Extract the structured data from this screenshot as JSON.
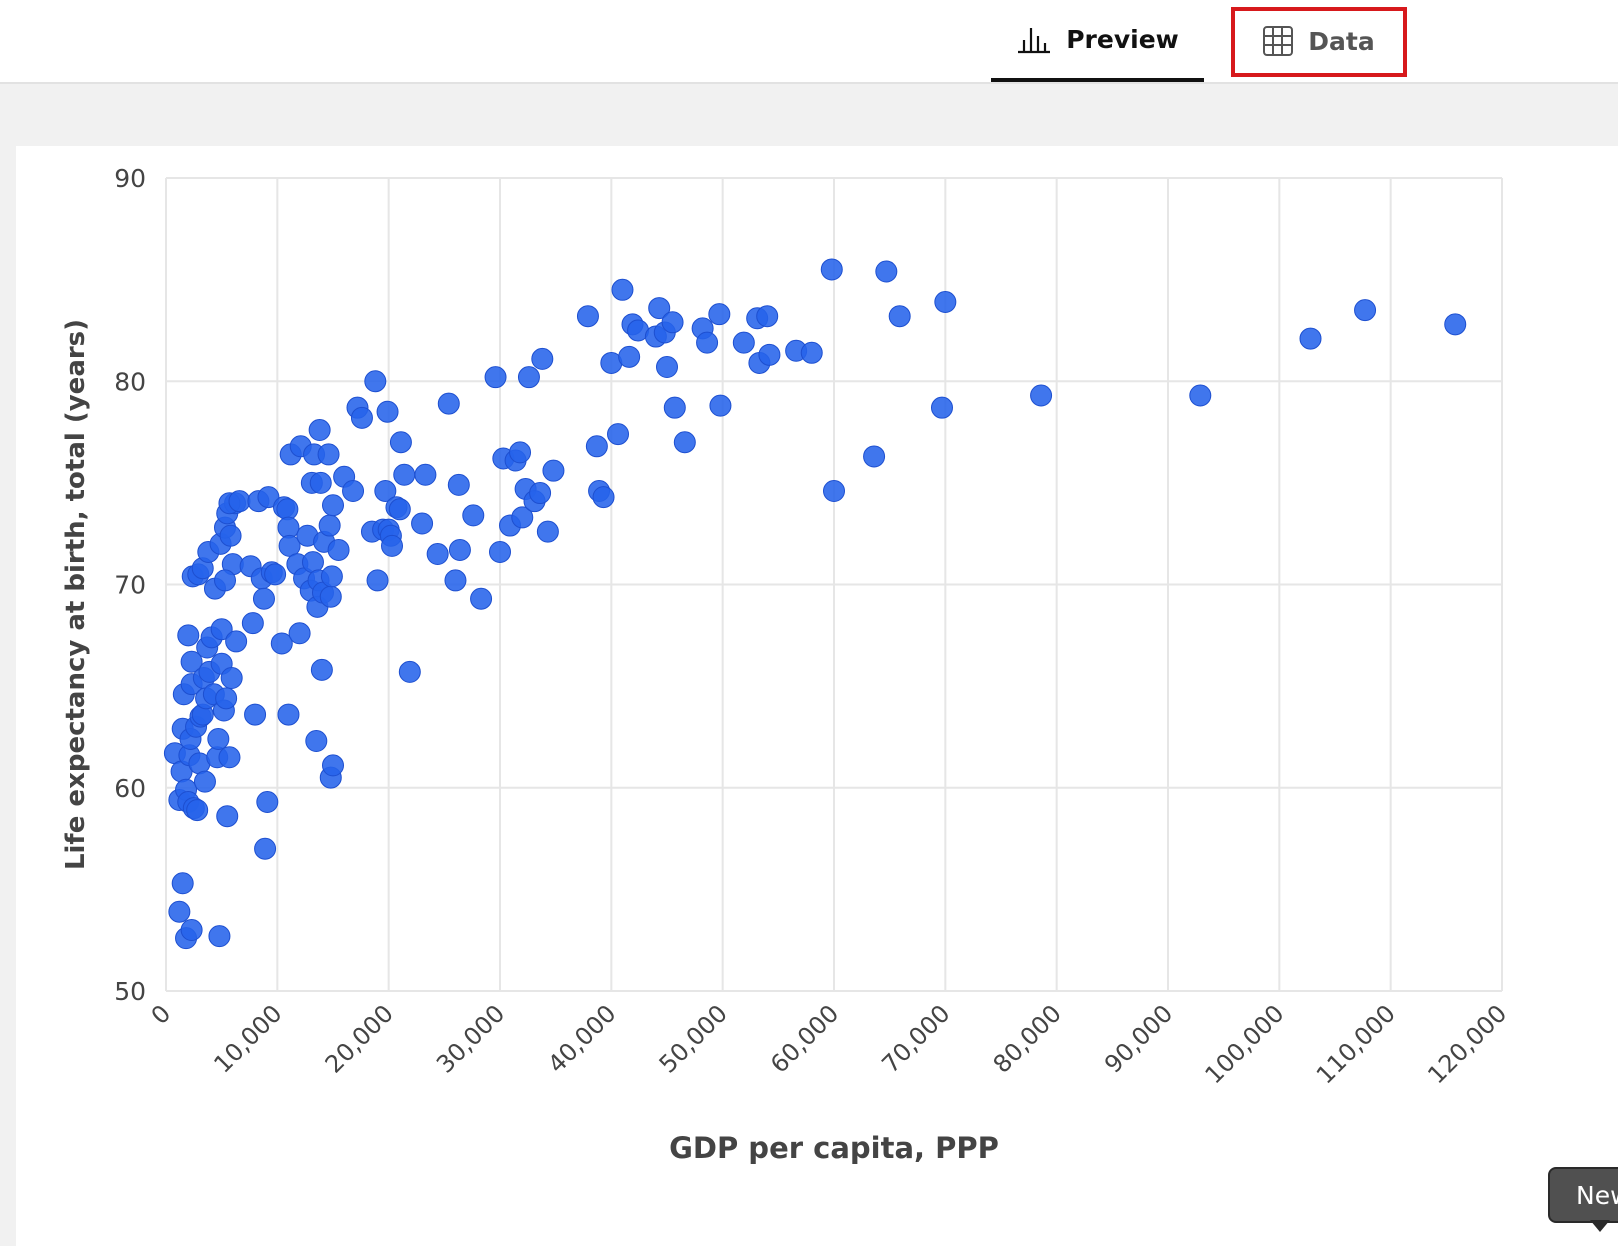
{
  "tabs": {
    "preview_label": "Preview",
    "data_label": "Data"
  },
  "tooltip": {
    "text": "New"
  },
  "colors": {
    "point": "#2563eb",
    "highlight": "#d7191c"
  },
  "chart_data": {
    "type": "scatter",
    "xlabel": "GDP per capita, PPP",
    "ylabel": "Life expectancy at birth, total (years)",
    "xlim": [
      0,
      120000
    ],
    "ylim": [
      50,
      90
    ],
    "x_ticks": [
      0,
      10000,
      20000,
      30000,
      40000,
      50000,
      60000,
      70000,
      80000,
      90000,
      100000,
      110000,
      120000
    ],
    "x_tick_labels": [
      "0",
      "10,000",
      "20,000",
      "30,000",
      "40,000",
      "50,000",
      "60,000",
      "70,000",
      "80,000",
      "90,000",
      "100,000",
      "110,000",
      "120,000"
    ],
    "y_ticks": [
      50,
      60,
      70,
      80,
      90
    ],
    "y_tick_labels": [
      "50",
      "60",
      "70",
      "80",
      "90"
    ],
    "grid": true,
    "points": [
      [
        1200,
        53.9
      ],
      [
        1500,
        55.3
      ],
      [
        1800,
        52.6
      ],
      [
        2300,
        53.0
      ],
      [
        4800,
        52.7
      ],
      [
        800,
        61.7
      ],
      [
        1200,
        59.4
      ],
      [
        1400,
        60.8
      ],
      [
        1500,
        62.9
      ],
      [
        1600,
        64.6
      ],
      [
        1800,
        59.9
      ],
      [
        2000,
        59.3
      ],
      [
        2100,
        61.6
      ],
      [
        2200,
        62.4
      ],
      [
        2300,
        65.1
      ],
      [
        2300,
        66.2
      ],
      [
        2000,
        67.5
      ],
      [
        2500,
        59.0
      ],
      [
        2700,
        63.0
      ],
      [
        2800,
        58.9
      ],
      [
        3000,
        61.2
      ],
      [
        3100,
        63.5
      ],
      [
        3300,
        63.6
      ],
      [
        3400,
        65.4
      ],
      [
        3500,
        60.3
      ],
      [
        3600,
        64.4
      ],
      [
        3700,
        66.9
      ],
      [
        3900,
        65.7
      ],
      [
        4100,
        67.4
      ],
      [
        4300,
        64.6
      ],
      [
        4600,
        61.5
      ],
      [
        4700,
        62.4
      ],
      [
        5000,
        66.1
      ],
      [
        5000,
        67.8
      ],
      [
        5200,
        63.8
      ],
      [
        5400,
        64.4
      ],
      [
        5500,
        58.6
      ],
      [
        5700,
        61.5
      ],
      [
        5900,
        65.4
      ],
      [
        6300,
        67.2
      ],
      [
        2400,
        70.4
      ],
      [
        2900,
        70.5
      ],
      [
        3300,
        70.8
      ],
      [
        3800,
        71.6
      ],
      [
        4400,
        69.8
      ],
      [
        4900,
        72.0
      ],
      [
        5300,
        72.8
      ],
      [
        5500,
        73.5
      ],
      [
        5800,
        72.4
      ],
      [
        6000,
        71.0
      ],
      [
        6200,
        74.0
      ],
      [
        5700,
        74.0
      ],
      [
        5300,
        70.2
      ],
      [
        6600,
        74.1
      ],
      [
        7600,
        70.9
      ],
      [
        7800,
        68.1
      ],
      [
        8000,
        63.6
      ],
      [
        8300,
        74.1
      ],
      [
        8600,
        70.3
      ],
      [
        8800,
        69.3
      ],
      [
        8900,
        57.0
      ],
      [
        9100,
        59.3
      ],
      [
        9200,
        74.3
      ],
      [
        9500,
        70.6
      ],
      [
        9800,
        70.5
      ],
      [
        10400,
        67.1
      ],
      [
        10600,
        73.8
      ],
      [
        10900,
        73.7
      ],
      [
        11000,
        72.8
      ],
      [
        11000,
        63.6
      ],
      [
        11100,
        71.9
      ],
      [
        11200,
        76.4
      ],
      [
        11800,
        71.0
      ],
      [
        12000,
        67.6
      ],
      [
        12100,
        76.8
      ],
      [
        12400,
        70.3
      ],
      [
        12700,
        72.4
      ],
      [
        13000,
        69.7
      ],
      [
        13100,
        75.0
      ],
      [
        13200,
        71.1
      ],
      [
        13300,
        76.4
      ],
      [
        13500,
        62.3
      ],
      [
        13600,
        68.9
      ],
      [
        13700,
        70.2
      ],
      [
        13800,
        77.6
      ],
      [
        13900,
        75.0
      ],
      [
        14000,
        65.8
      ],
      [
        14100,
        69.6
      ],
      [
        14200,
        72.1
      ],
      [
        14600,
        76.4
      ],
      [
        14700,
        72.9
      ],
      [
        14800,
        69.4
      ],
      [
        14900,
        70.4
      ],
      [
        15000,
        73.9
      ],
      [
        14800,
        60.5
      ],
      [
        15000,
        61.1
      ],
      [
        15500,
        71.7
      ],
      [
        16000,
        75.3
      ],
      [
        16800,
        74.6
      ],
      [
        17200,
        78.7
      ],
      [
        17600,
        78.2
      ],
      [
        18500,
        72.6
      ],
      [
        18800,
        80.0
      ],
      [
        19000,
        70.2
      ],
      [
        19500,
        72.7
      ],
      [
        19700,
        74.6
      ],
      [
        19900,
        78.5
      ],
      [
        20000,
        72.7
      ],
      [
        20200,
        72.4
      ],
      [
        20300,
        71.9
      ],
      [
        20700,
        73.8
      ],
      [
        21000,
        73.7
      ],
      [
        21100,
        77.0
      ],
      [
        21400,
        75.4
      ],
      [
        21900,
        65.7
      ],
      [
        23000,
        73.0
      ],
      [
        23300,
        75.4
      ],
      [
        24400,
        71.5
      ],
      [
        25400,
        78.9
      ],
      [
        26000,
        70.2
      ],
      [
        26400,
        71.7
      ],
      [
        26300,
        74.9
      ],
      [
        27600,
        73.4
      ],
      [
        28300,
        69.3
      ],
      [
        29600,
        80.2
      ],
      [
        30000,
        71.6
      ],
      [
        30300,
        76.2
      ],
      [
        30900,
        72.9
      ],
      [
        31400,
        76.1
      ],
      [
        31800,
        76.5
      ],
      [
        32000,
        73.3
      ],
      [
        32300,
        74.7
      ],
      [
        32600,
        80.2
      ],
      [
        33100,
        74.1
      ],
      [
        33600,
        74.5
      ],
      [
        33800,
        81.1
      ],
      [
        34300,
        72.6
      ],
      [
        34800,
        75.6
      ],
      [
        37900,
        83.2
      ],
      [
        38700,
        76.8
      ],
      [
        38900,
        74.6
      ],
      [
        39300,
        74.3
      ],
      [
        40000,
        80.9
      ],
      [
        40600,
        77.4
      ],
      [
        41000,
        84.5
      ],
      [
        41600,
        81.2
      ],
      [
        41900,
        82.8
      ],
      [
        42400,
        82.5
      ],
      [
        44000,
        82.2
      ],
      [
        44300,
        83.6
      ],
      [
        44800,
        82.4
      ],
      [
        45000,
        80.7
      ],
      [
        45500,
        82.9
      ],
      [
        45700,
        78.7
      ],
      [
        46600,
        77.0
      ],
      [
        48200,
        82.6
      ],
      [
        48600,
        81.9
      ],
      [
        49700,
        83.3
      ],
      [
        49800,
        78.8
      ],
      [
        51900,
        81.9
      ],
      [
        53100,
        83.1
      ],
      [
        53300,
        80.9
      ],
      [
        54000,
        83.2
      ],
      [
        54200,
        81.3
      ],
      [
        56600,
        81.5
      ],
      [
        58000,
        81.4
      ],
      [
        59800,
        85.5
      ],
      [
        60000,
        74.6
      ],
      [
        63600,
        76.3
      ],
      [
        64700,
        85.4
      ],
      [
        65900,
        83.2
      ],
      [
        69700,
        78.7
      ],
      [
        70000,
        83.9
      ],
      [
        78600,
        79.3
      ],
      [
        92900,
        79.3
      ],
      [
        102800,
        82.1
      ],
      [
        107700,
        83.5
      ],
      [
        115800,
        82.8
      ]
    ]
  }
}
